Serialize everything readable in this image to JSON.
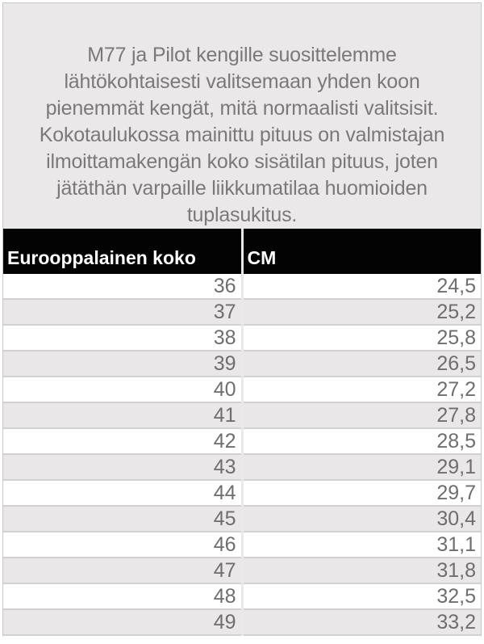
{
  "intro": {
    "text": "M77 ja Pilot kengille suosittelemme\nlähtökohtaisesti valitsemaan yhden koon\npienemmät kengät, mitä normaalisti valitsisit.\nKokotaulukossa mainittu pituus on valmistajan\nilmoittamakengän koko sisätilan pituus, joten\njätäthän varpaille liikkumatilaa huomioiden\ntuplasukitus."
  },
  "size_table": {
    "columns": [
      "Eurooppalainen koko",
      "CM"
    ],
    "rows": [
      [
        "36",
        "24,5"
      ],
      [
        "37",
        "25,2"
      ],
      [
        "38",
        "25,8"
      ],
      [
        "39",
        "26,5"
      ],
      [
        "40",
        "27,2"
      ],
      [
        "41",
        "27,8"
      ],
      [
        "42",
        "28,5"
      ],
      [
        "43",
        "29,1"
      ],
      [
        "44",
        "29,7"
      ],
      [
        "45",
        "30,4"
      ],
      [
        "46",
        "31,1"
      ],
      [
        "47",
        "31,8"
      ],
      [
        "48",
        "32,5"
      ],
      [
        "49",
        "33,2"
      ]
    ]
  },
  "colors": {
    "panel_background": "#eae8e9",
    "panel_border": "#c8c6c7",
    "header_background": "#030303",
    "header_text": "#ffffff",
    "row_stripe": "#e9e7e8",
    "row_border": "#d3d1d2",
    "body_text": "#7a7879",
    "cell_text": "#6f6d6e"
  }
}
